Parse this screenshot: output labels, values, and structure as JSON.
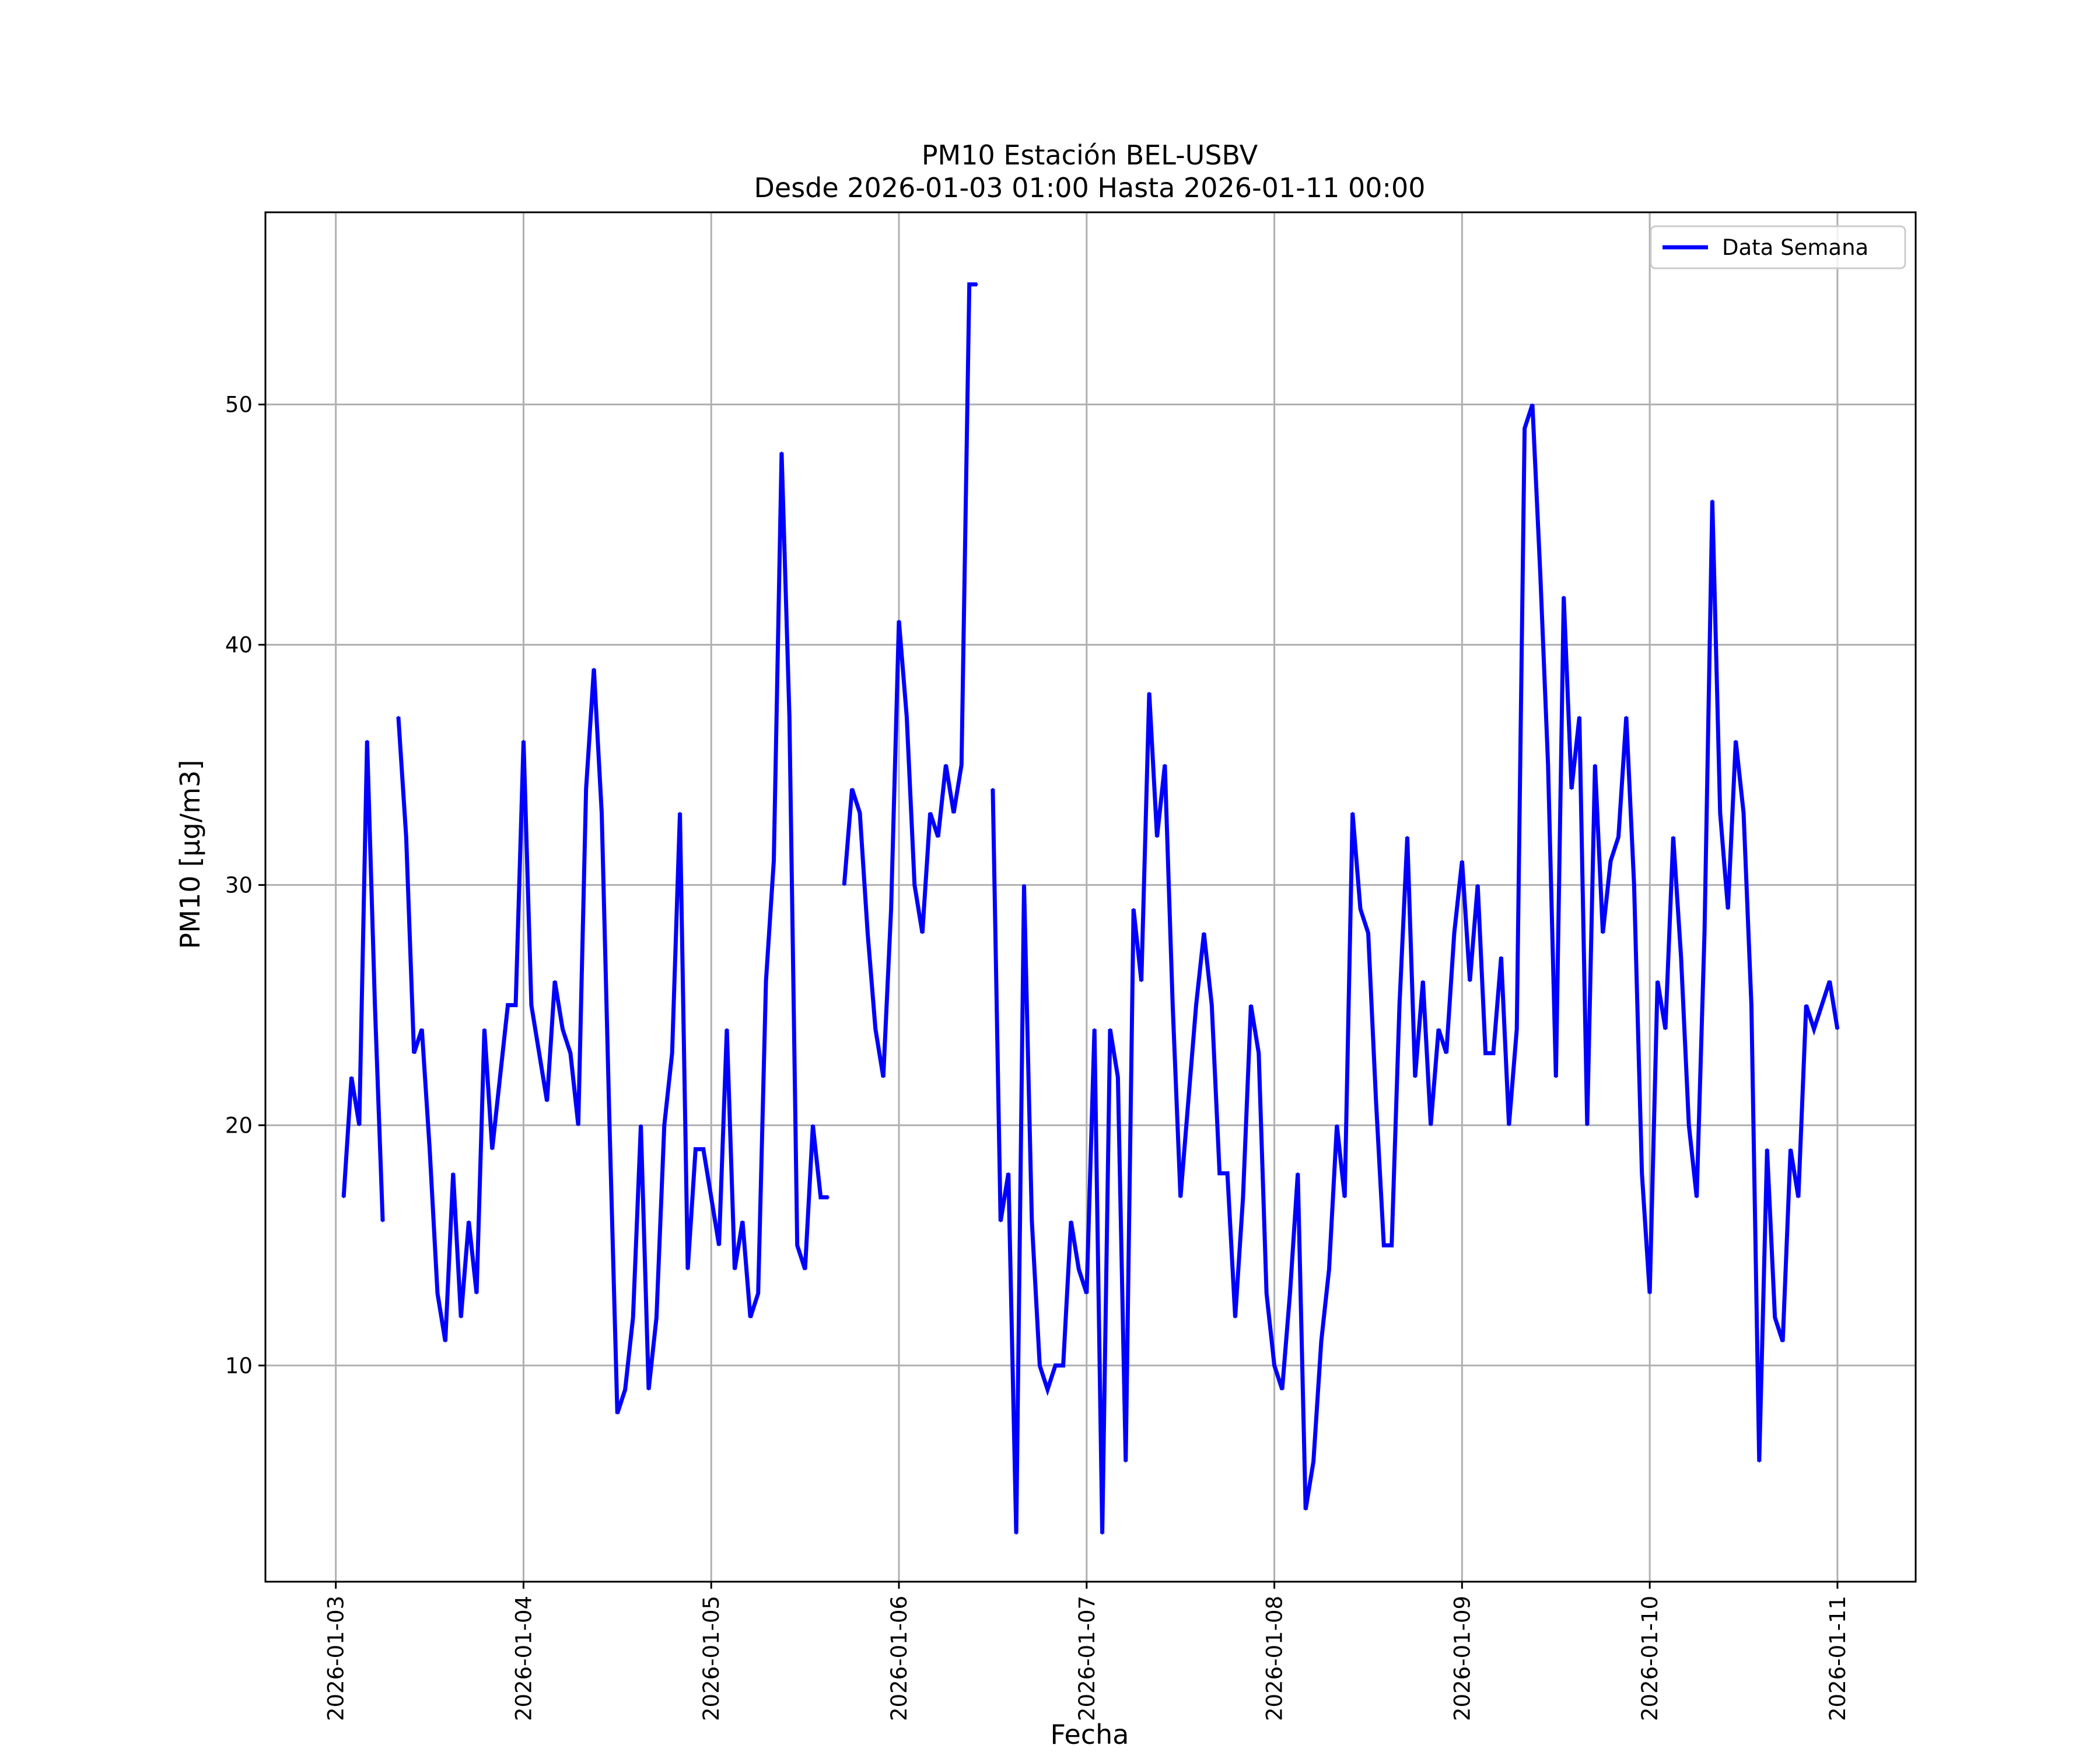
{
  "chart_data": {
    "type": "line",
    "title": "PM10 Estación BEL-USBV",
    "subtitle": "Desde 2026-01-03 01:00 Hasta 2026-01-11 00:00",
    "xlabel": "Fecha",
    "ylabel": "PM10 [µg/m3]",
    "xlim": [
      "2026-01-02 15:00",
      "2026-01-11 10:00"
    ],
    "ylim": [
      1,
      58
    ],
    "x_ticks": [
      "2026-01-03",
      "2026-01-04",
      "2026-01-05",
      "2026-01-06",
      "2026-01-07",
      "2026-01-08",
      "2026-01-09",
      "2026-01-10",
      "2026-01-11"
    ],
    "y_ticks": [
      10,
      20,
      30,
      40,
      50
    ],
    "grid": true,
    "legend_position": "top-right",
    "colors": {
      "series": "#0000ff"
    },
    "series": [
      {
        "name": "Data Semana",
        "x": [
          "2026-01-03 01:00",
          "2026-01-03 02:00",
          "2026-01-03 03:00",
          "2026-01-03 04:00",
          "2026-01-03 05:00",
          "2026-01-03 06:00",
          "2026-01-03 07:00",
          "2026-01-03 08:00",
          "2026-01-03 09:00",
          "2026-01-03 10:00",
          "2026-01-03 11:00",
          "2026-01-03 12:00",
          "2026-01-03 13:00",
          "2026-01-03 14:00",
          "2026-01-03 15:00",
          "2026-01-03 16:00",
          "2026-01-03 17:00",
          "2026-01-03 18:00",
          "2026-01-03 19:00",
          "2026-01-03 20:00",
          "2026-01-03 21:00",
          "2026-01-03 22:00",
          "2026-01-03 23:00",
          "2026-01-04 00:00",
          "2026-01-04 01:00",
          "2026-01-04 02:00",
          "2026-01-04 03:00",
          "2026-01-04 04:00",
          "2026-01-04 05:00",
          "2026-01-04 06:00",
          "2026-01-04 07:00",
          "2026-01-04 08:00",
          "2026-01-04 09:00",
          "2026-01-04 10:00",
          "2026-01-04 11:00",
          "2026-01-04 12:00",
          "2026-01-04 13:00",
          "2026-01-04 14:00",
          "2026-01-04 15:00",
          "2026-01-04 16:00",
          "2026-01-04 17:00",
          "2026-01-04 18:00",
          "2026-01-04 19:00",
          "2026-01-04 20:00",
          "2026-01-04 21:00",
          "2026-01-04 22:00",
          "2026-01-04 23:00",
          "2026-01-05 00:00",
          "2026-01-05 01:00",
          "2026-01-05 02:00",
          "2026-01-05 03:00",
          "2026-01-05 04:00",
          "2026-01-05 05:00",
          "2026-01-05 06:00",
          "2026-01-05 07:00",
          "2026-01-05 08:00",
          "2026-01-05 09:00",
          "2026-01-05 10:00",
          "2026-01-05 11:00",
          "2026-01-05 12:00",
          "2026-01-05 13:00",
          "2026-01-05 14:00",
          "2026-01-05 15:00",
          "2026-01-05 16:00",
          "2026-01-05 17:00",
          "2026-01-05 18:00",
          "2026-01-05 19:00",
          "2026-01-05 20:00",
          "2026-01-05 21:00",
          "2026-01-05 22:00",
          "2026-01-05 23:00",
          "2026-01-06 00:00",
          "2026-01-06 01:00",
          "2026-01-06 02:00",
          "2026-01-06 03:00",
          "2026-01-06 04:00",
          "2026-01-06 05:00",
          "2026-01-06 06:00",
          "2026-01-06 07:00",
          "2026-01-06 08:00",
          "2026-01-06 09:00",
          "2026-01-06 10:00",
          "2026-01-06 11:00",
          "2026-01-06 12:00",
          "2026-01-06 13:00",
          "2026-01-06 14:00",
          "2026-01-06 15:00",
          "2026-01-06 16:00",
          "2026-01-06 17:00",
          "2026-01-06 18:00",
          "2026-01-06 19:00",
          "2026-01-06 20:00",
          "2026-01-06 21:00",
          "2026-01-06 22:00",
          "2026-01-06 23:00",
          "2026-01-07 00:00",
          "2026-01-07 01:00",
          "2026-01-07 02:00",
          "2026-01-07 03:00",
          "2026-01-07 04:00",
          "2026-01-07 05:00",
          "2026-01-07 06:00",
          "2026-01-07 07:00",
          "2026-01-07 08:00",
          "2026-01-07 09:00",
          "2026-01-07 10:00",
          "2026-01-07 11:00",
          "2026-01-07 12:00",
          "2026-01-07 13:00",
          "2026-01-07 14:00",
          "2026-01-07 15:00",
          "2026-01-07 16:00",
          "2026-01-07 17:00",
          "2026-01-07 18:00",
          "2026-01-07 19:00",
          "2026-01-07 20:00",
          "2026-01-07 21:00",
          "2026-01-07 22:00",
          "2026-01-07 23:00",
          "2026-01-08 00:00",
          "2026-01-08 01:00",
          "2026-01-08 02:00",
          "2026-01-08 03:00",
          "2026-01-08 04:00",
          "2026-01-08 05:00",
          "2026-01-08 06:00",
          "2026-01-08 07:00",
          "2026-01-08 08:00",
          "2026-01-08 09:00",
          "2026-01-08 10:00",
          "2026-01-08 11:00",
          "2026-01-08 12:00",
          "2026-01-08 13:00",
          "2026-01-08 14:00",
          "2026-01-08 15:00",
          "2026-01-08 16:00",
          "2026-01-08 17:00",
          "2026-01-08 18:00",
          "2026-01-08 19:00",
          "2026-01-08 20:00",
          "2026-01-08 21:00",
          "2026-01-08 22:00",
          "2026-01-08 23:00",
          "2026-01-09 00:00",
          "2026-01-09 01:00",
          "2026-01-09 02:00",
          "2026-01-09 03:00",
          "2026-01-09 04:00",
          "2026-01-09 05:00",
          "2026-01-09 06:00",
          "2026-01-09 07:00",
          "2026-01-09 08:00",
          "2026-01-09 09:00",
          "2026-01-09 10:00",
          "2026-01-09 11:00",
          "2026-01-09 12:00",
          "2026-01-09 13:00",
          "2026-01-09 14:00",
          "2026-01-09 15:00",
          "2026-01-09 16:00",
          "2026-01-09 17:00",
          "2026-01-09 18:00",
          "2026-01-09 19:00",
          "2026-01-09 20:00",
          "2026-01-09 21:00",
          "2026-01-09 22:00",
          "2026-01-09 23:00",
          "2026-01-10 00:00",
          "2026-01-10 01:00",
          "2026-01-10 02:00",
          "2026-01-10 03:00",
          "2026-01-10 04:00",
          "2026-01-10 05:00",
          "2026-01-10 06:00",
          "2026-01-10 07:00",
          "2026-01-10 08:00",
          "2026-01-10 09:00",
          "2026-01-10 10:00",
          "2026-01-10 11:00",
          "2026-01-10 12:00",
          "2026-01-10 13:00",
          "2026-01-10 14:00",
          "2026-01-10 15:00",
          "2026-01-10 16:00",
          "2026-01-10 17:00",
          "2026-01-10 18:00",
          "2026-01-10 19:00",
          "2026-01-10 20:00",
          "2026-01-10 21:00",
          "2026-01-10 22:00",
          "2026-01-10 23:00",
          "2026-01-11 00:00"
        ],
        "values": [
          17,
          22,
          20,
          36,
          25,
          16,
          null,
          37,
          32,
          23,
          24,
          19,
          13,
          11,
          18,
          12,
          16,
          13,
          24,
          19,
          22,
          25,
          25,
          36,
          25,
          23,
          21,
          26,
          24,
          23,
          20,
          34,
          39,
          33,
          20,
          8,
          9,
          12,
          20,
          9,
          12,
          20,
          23,
          33,
          14,
          19,
          19,
          17,
          15,
          24,
          14,
          16,
          12,
          13,
          26,
          31,
          48,
          37,
          15,
          14,
          20,
          17,
          17,
          null,
          30,
          34,
          33,
          28,
          24,
          22,
          29,
          41,
          37,
          30,
          28,
          33,
          32,
          35,
          33,
          35,
          55,
          55,
          null,
          34,
          16,
          18,
          3,
          30,
          16,
          10,
          9,
          10,
          10,
          16,
          14,
          13,
          24,
          3,
          24,
          22,
          6,
          29,
          26,
          38,
          32,
          35,
          25,
          17,
          21,
          25,
          28,
          25,
          18,
          18,
          12,
          17,
          25,
          23,
          13,
          10,
          9,
          13,
          18,
          4,
          6,
          11,
          14,
          20,
          17,
          33,
          29,
          28,
          21,
          15,
          15,
          25,
          32,
          22,
          26,
          20,
          24,
          23,
          28,
          31,
          26,
          30,
          23,
          23,
          27,
          20,
          24,
          49,
          50,
          43,
          35,
          22,
          42,
          34,
          37,
          20,
          35,
          28,
          31,
          32,
          37,
          30,
          18,
          13,
          26,
          24,
          32,
          27,
          20,
          17,
          28,
          46,
          33,
          29,
          36,
          33,
          25,
          6,
          19,
          12,
          11,
          19,
          17,
          25,
          24,
          25,
          26,
          24
        ]
      }
    ]
  }
}
